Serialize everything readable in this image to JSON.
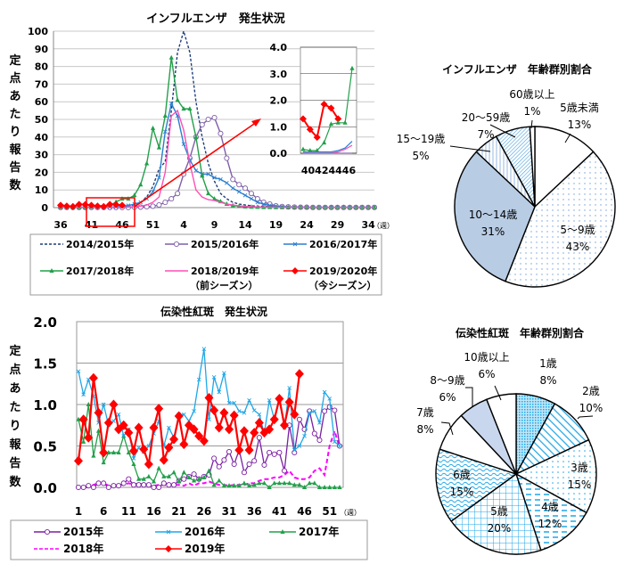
{
  "chart_data": [
    {
      "type": "line",
      "title": "インフルエンザ　発生状況",
      "ylabel": "定点あたり報告数",
      "xlabel": "（週）",
      "ylim": [
        0,
        100
      ],
      "yticks": [
        "0",
        "10",
        "20",
        "30",
        "40",
        "50",
        "60",
        "70",
        "80",
        "90",
        "100"
      ],
      "xticks": [
        "36",
        "41",
        "46",
        "51",
        "4",
        "9",
        "14",
        "19",
        "24",
        "29",
        "34"
      ],
      "x_weeks": [
        36,
        37,
        38,
        39,
        40,
        41,
        42,
        43,
        44,
        45,
        46,
        47,
        48,
        49,
        50,
        51,
        52,
        1,
        2,
        3,
        4,
        5,
        6,
        7,
        8,
        9,
        10,
        11,
        12,
        13,
        14,
        15,
        16,
        17,
        18,
        19,
        20,
        21,
        22,
        23,
        24,
        25,
        26,
        27,
        28,
        29,
        30,
        31,
        32,
        33,
        34,
        35
      ],
      "grid": true,
      "series": [
        {
          "name": "2014/2015年",
          "color": "#1f3f7a",
          "style": "dashed",
          "marker": "none",
          "values": [
            0.1,
            0.1,
            0.1,
            0.1,
            0.1,
            0.1,
            0.1,
            0.1,
            0.2,
            0.3,
            0.5,
            0.8,
            1.5,
            3,
            6,
            12,
            22,
            26,
            55,
            88,
            100,
            88,
            60,
            40,
            25,
            15,
            8,
            5,
            3,
            2,
            1.5,
            1,
            0.8,
            0.6,
            0.5,
            0.4,
            0.3,
            0.3,
            0.2,
            0.2,
            0.2,
            0.1,
            0.1,
            0.1,
            0.1,
            0.1,
            0.1,
            0.1,
            0.1,
            0.1,
            0.1,
            0.1
          ]
        },
        {
          "name": "2015/2016年",
          "color": "#7f5fa8",
          "style": "solid",
          "marker": "circle",
          "values": [
            0.1,
            0.1,
            0.1,
            0.1,
            0.1,
            0.1,
            0.1,
            0.1,
            0.1,
            0.1,
            0.1,
            0.1,
            0.2,
            0.3,
            0.5,
            0.8,
            1.5,
            3,
            5,
            8,
            19,
            28,
            40,
            47,
            50,
            51,
            42,
            28,
            16,
            13,
            11,
            8,
            5,
            3,
            2,
            1,
            0.6,
            0.4,
            0.3,
            0.2,
            0.2,
            0.1,
            0.1,
            0.1,
            0.1,
            0.1,
            0.1,
            0.1,
            0.1,
            0.1,
            0.1,
            0.1
          ]
        },
        {
          "name": "2016/2017年",
          "color": "#2a7fd0",
          "style": "solid",
          "marker": "x",
          "values": [
            0.1,
            0.1,
            0.1,
            0.1,
            0.1,
            0.1,
            0.1,
            0.2,
            0.3,
            0.4,
            0.7,
            1.2,
            2,
            3,
            5,
            9,
            17,
            43,
            59,
            52,
            36,
            27,
            21,
            19,
            19,
            17,
            16,
            14,
            11,
            9,
            7,
            5,
            3,
            2,
            1.2,
            0.8,
            0.5,
            0.3,
            0.2,
            0.2,
            0.1,
            0.1,
            0.1,
            0.1,
            0.1,
            0.1,
            0.1,
            0.1,
            0.1,
            0.1,
            0.1,
            0.2
          ]
        },
        {
          "name": "2017/2018年",
          "color": "#22a04a",
          "style": "solid",
          "marker": "triangle",
          "values": [
            0.2,
            0.1,
            0.1,
            0.1,
            0.1,
            0.4,
            1.1,
            1.1,
            1.1,
            3.2,
            5,
            5,
            7,
            13,
            25,
            45,
            34,
            52,
            85,
            61,
            56,
            56,
            40,
            18,
            8,
            5,
            3.5,
            2,
            1.2,
            0.8,
            0.5,
            0.4,
            0.3,
            0.2,
            0.2,
            0.1,
            0.1,
            0.1,
            0.1,
            0.1,
            0.1,
            0.1,
            0.1,
            0.1,
            0.1,
            0.1,
            0.1,
            0.1,
            0.1,
            0.1,
            0.1,
            0.1
          ]
        },
        {
          "name": "2018/2019年（前シーズン）",
          "color": "#ff4fb8",
          "style": "solid",
          "marker": "none",
          "values": [
            0.1,
            0.1,
            0.1,
            0.1,
            0.1,
            0.1,
            0.1,
            0.1,
            0.1,
            0.1,
            0.2,
            0.3,
            0.5,
            0.8,
            1.5,
            3,
            6,
            20,
            52,
            55,
            44,
            25,
            10,
            6,
            4.5,
            4,
            3,
            2,
            1.5,
            1,
            0.7,
            0.5,
            0.4,
            0.3,
            0.2,
            0.2,
            0.1,
            0.1,
            0.1,
            0.1,
            0.1,
            0.1,
            0.1,
            0.1,
            0.1,
            0.1,
            0.1,
            0.1,
            0.1,
            0.1,
            0.1,
            0.1
          ]
        },
        {
          "name": "2019/2020年（今シーズン）",
          "color": "#ff0000",
          "style": "solid",
          "marker": "diamond",
          "values": [
            1.3,
            0.9,
            0.6,
            1.85,
            1.7,
            1.3,
            0.9,
            0.6,
            1.85,
            1.7,
            1.3
          ]
        }
      ],
      "highlight_box": {
        "from_week": 40,
        "to_week": 46
      },
      "inset": {
        "ylim": [
          0,
          4
        ],
        "yticks": [
          "0.0",
          "1.0",
          "2.0",
          "3.0",
          "4.0"
        ],
        "xtick_label": "40424446",
        "weeks": [
          40,
          41,
          42,
          43,
          44,
          45,
          46,
          47
        ],
        "series": [
          {
            "name": "2019/2020年",
            "color": "#ff0000",
            "values": [
              1.3,
              0.9,
              0.6,
              1.85,
              1.7,
              1.3
            ]
          },
          {
            "name": "2017/2018年",
            "color": "#22a04a",
            "values": [
              0.15,
              0.1,
              0.1,
              0.4,
              1.1,
              1.15,
              1.15,
              3.2
            ]
          },
          {
            "name": "2016/2017年",
            "color": "#2a7fd0",
            "values": [
              0.05,
              0.05,
              0.05,
              0.05,
              0.05,
              0.1,
              0.2,
              0.45
            ]
          },
          {
            "name": "2018/2019年",
            "color": "#ff4fb8",
            "values": [
              0,
              0,
              0,
              0,
              0,
              0.05,
              0.15,
              0.3
            ]
          },
          {
            "name": "2015/2016年",
            "color": "#7f5fa8",
            "values": [
              0,
              0,
              0,
              0,
              0,
              0,
              0,
              0
            ]
          }
        ]
      },
      "legend": [
        {
          "label": "2014/2015年",
          "sub": ""
        },
        {
          "label": "2015/2016年",
          "sub": ""
        },
        {
          "label": "2016/2017年",
          "sub": ""
        },
        {
          "label": "2017/2018年",
          "sub": ""
        },
        {
          "label": "2018/2019年",
          "sub": "（前シーズン）"
        },
        {
          "label": "2019/2020年",
          "sub": "（今シーズン）"
        }
      ]
    },
    {
      "type": "pie",
      "title": "インフルエンザ　年齢群別割合",
      "slices": [
        {
          "label": "5歳未満",
          "value": 13,
          "fill": "#ffffff",
          "pattern": "none"
        },
        {
          "label": "5～9歳",
          "value": 43,
          "fill": "#ffffff",
          "pattern": "dots"
        },
        {
          "label": "10～14歳",
          "value": 31,
          "fill": "#b8cce4",
          "pattern": "none"
        },
        {
          "label": "15～19歳",
          "value": 5,
          "fill": "#ffffff",
          "pattern": "vlines"
        },
        {
          "label": "20～59歳",
          "value": 7,
          "fill": "#ffffff",
          "pattern": "diag"
        },
        {
          "label": "60歳以上",
          "value": 1,
          "fill": "#ffffff",
          "pattern": "none"
        }
      ]
    },
    {
      "type": "line",
      "title": "伝染性紅斑　発生状況",
      "ylabel": "定点あたり報告数",
      "xlabel": "（週）",
      "ylim": [
        0,
        2.0
      ],
      "yticks": [
        "0.0",
        "0.5",
        "1.0",
        "1.5",
        "2.0"
      ],
      "xticks": [
        "1",
        "6",
        "11",
        "16",
        "21",
        "26",
        "31",
        "36",
        "41",
        "46",
        "51"
      ],
      "grid": true,
      "series": [
        {
          "name": "2015年",
          "color": "#7b1fa2",
          "style": "solid",
          "marker": "circle",
          "values": [
            0,
            0,
            0.02,
            0,
            0.05,
            0.05,
            0,
            0.02,
            0.02,
            0.05,
            0.1,
            0.03,
            0.03,
            0.03,
            0.03,
            0,
            0,
            0.05,
            0.03,
            0.03,
            0.08,
            0.1,
            0.13,
            0.16,
            0.1,
            0.13,
            0.15,
            0.35,
            0.25,
            0.33,
            0.43,
            0.28,
            0.45,
            0.18,
            0.28,
            0.32,
            0.6,
            0.27,
            0.42,
            0.4,
            0.42,
            0.2,
            0.75,
            0.42,
            0.82,
            0.7,
            0.92,
            0.65,
            0.57,
            0.92,
            0.97,
            0.93,
            0.5
          ]
        },
        {
          "name": "2016年",
          "color": "#1ea7e8",
          "style": "solid",
          "marker": "x",
          "values": [
            1.4,
            1.12,
            1.3,
            1.1,
            0.78,
            1.0,
            0.75,
            0.8,
            0.88,
            0.62,
            0.7,
            0.35,
            0.48,
            0.43,
            0.5,
            0.65,
            0.8,
            0.5,
            0.72,
            0.6,
            0.88,
            0.88,
            0.8,
            0.92,
            1.3,
            1.67,
            0.82,
            1.33,
            1.15,
            1.38,
            1.02,
            1.02,
            0.92,
            0.9,
            1.05,
            0.93,
            0.88,
            0.65,
            1.05,
            0.82,
            1.05,
            0.72,
            1.2,
            0.45,
            0.5,
            0.62,
            0.9,
            0.92,
            0.78,
            1.15,
            1.07,
            0.55,
            0.5
          ]
        },
        {
          "name": "2017年",
          "color": "#22a04a",
          "style": "solid",
          "marker": "triangle",
          "values": [
            0.82,
            0.55,
            1.0,
            0.38,
            0.68,
            0.3,
            0.42,
            0.42,
            0.42,
            0.62,
            0.42,
            0.28,
            0.1,
            0.1,
            0.13,
            0.07,
            0.23,
            0.13,
            0.13,
            0.18,
            0.07,
            0.18,
            0.12,
            0.08,
            0.1,
            0.12,
            0.2,
            0.03,
            0.08,
            0.02,
            0.02,
            0.02,
            0.02,
            0.05,
            0.02,
            0.03,
            0.05,
            0.05,
            0,
            0.05,
            0.05,
            0.05,
            0.05,
            0.03,
            0.03,
            0,
            0.05,
            0.05,
            0,
            0,
            0,
            0,
            0
          ]
        },
        {
          "name": "2018年",
          "color": "#ff00ff",
          "style": "dashed",
          "marker": "none",
          "values": [
            0,
            0,
            0,
            0.03,
            0.05,
            0.05,
            0.02,
            0.02,
            0.03,
            0.03,
            0.05,
            0.03,
            0.05,
            0.03,
            0.02,
            0.02,
            0.03,
            0.03,
            0.02,
            0.03,
            0.03,
            0.02,
            0.05,
            0.02,
            0.05,
            0.05,
            0.07,
            0.05,
            0.03,
            0.03,
            0.02,
            0.03,
            0.03,
            0.03,
            0.05,
            0.05,
            0.08,
            0.1,
            0.1,
            0.12,
            0.12,
            0.15,
            0.2,
            0.12,
            0.1,
            0.1,
            0.12,
            0.2,
            0.23,
            0.15,
            0.5,
            0.68,
            0.48
          ]
        },
        {
          "name": "2019年",
          "color": "#ff0000",
          "style": "solid",
          "marker": "diamond",
          "values": [
            0.32,
            0.82,
            0.6,
            1.32,
            0.9,
            0.42,
            0.78,
            1.0,
            0.7,
            0.75,
            0.66,
            0.44,
            0.72,
            0.46,
            0.28,
            0.72,
            0.95,
            0.33,
            0.48,
            0.58,
            0.86,
            0.52,
            0.75,
            0.7,
            0.62,
            0.56,
            1.08,
            0.93,
            0.72,
            0.9,
            0.7,
            0.87,
            0.45,
            0.68,
            0.45,
            0.66,
            0.78,
            0.66,
            0.7,
            0.82,
            1.07,
            0.75,
            1.03,
            0.88,
            1.37
          ]
        }
      ],
      "legend": [
        {
          "label": "2015年"
        },
        {
          "label": "2016年"
        },
        {
          "label": "2017年"
        },
        {
          "label": "2018年"
        },
        {
          "label": "2019年"
        }
      ]
    },
    {
      "type": "pie",
      "title": "伝染性紅斑　年齢群別割合",
      "slices": [
        {
          "label": "1歳",
          "value": 8,
          "fill": "#ffffff",
          "pattern": "grid-fine"
        },
        {
          "label": "2歳",
          "value": 10,
          "fill": "#ffffff",
          "pattern": "diag-wide"
        },
        {
          "label": "3歳",
          "value": 15,
          "fill": "#ffffff",
          "pattern": "dots"
        },
        {
          "label": "4歳",
          "value": 12,
          "fill": "#ffffff",
          "pattern": "dashes"
        },
        {
          "label": "5歳",
          "value": 20,
          "fill": "#ffffff",
          "pattern": "grid"
        },
        {
          "label": "6歳",
          "value": 15,
          "fill": "#ffffff",
          "pattern": "waves"
        },
        {
          "label": "7歳",
          "value": 8,
          "fill": "#ffffff",
          "pattern": "none"
        },
        {
          "label": "8～9歳",
          "value": 6,
          "fill": "#c9d7ee",
          "pattern": "none"
        },
        {
          "label": "10歳以上",
          "value": 6,
          "fill": "#ffffff",
          "pattern": "none"
        }
      ]
    }
  ]
}
